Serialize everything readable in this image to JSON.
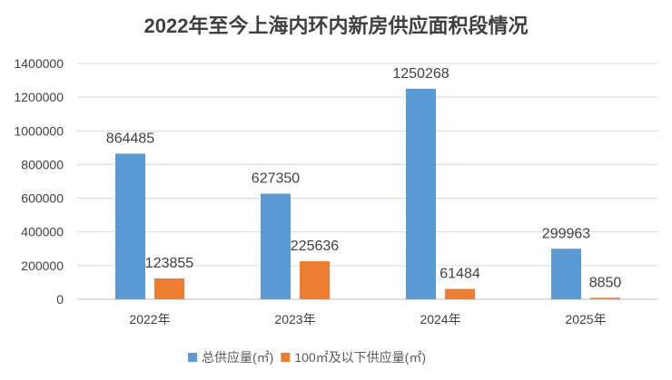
{
  "chart_data": {
    "type": "bar",
    "title": "2022年至今上海内环内新房供应面积段情况",
    "categories": [
      "2022年",
      "2023年",
      "2024年",
      "2025年"
    ],
    "series": [
      {
        "name": "总供应量(㎡)",
        "color": "#5B9BD5",
        "values": [
          864485,
          627350,
          1250268,
          299963
        ]
      },
      {
        "name": "100㎡及以下供应量(㎡)",
        "color": "#ED7D31",
        "values": [
          123855,
          225636,
          61484,
          8850
        ]
      }
    ],
    "ylim": [
      0,
      1400000
    ],
    "yticks": [
      0,
      200000,
      400000,
      600000,
      800000,
      1000000,
      1200000,
      1400000
    ],
    "grid": true,
    "legend": "bottom",
    "xlabel": "",
    "ylabel": ""
  }
}
